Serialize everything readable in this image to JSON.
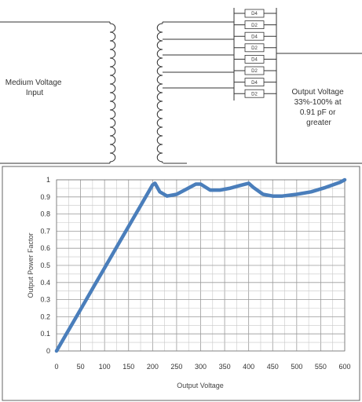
{
  "circuit": {
    "input_label": [
      "Medium Voltage",
      "Input"
    ],
    "output_label": [
      "Output Voltage",
      "33%-100% at",
      "0.91 pF or",
      "greater"
    ],
    "diode_labels": [
      "D4",
      "D2",
      "D4",
      "D2",
      "D4",
      "D2",
      "D4",
      "D2"
    ]
  },
  "chart_data": {
    "type": "line",
    "title": "",
    "xlabel": "Output Voltage",
    "ylabel": "Output Power Factor",
    "xlim": [
      0,
      600
    ],
    "ylim": [
      0,
      1
    ],
    "xticks": [
      "0",
      "50",
      "100",
      "150",
      "200",
      "250",
      "300",
      "350",
      "400",
      "450",
      "500",
      "550",
      "600"
    ],
    "yticks": [
      "0",
      "0.1",
      "0.2",
      "0.3",
      "0.4",
      "0.5",
      "0.6",
      "0.7",
      "0.8",
      "0.9",
      "1"
    ],
    "grid": true,
    "series": [
      {
        "x": [
          0,
          20,
          40,
          60,
          80,
          100,
          120,
          140,
          160,
          180,
          200,
          205,
          215,
          230,
          250,
          270,
          290,
          300,
          320,
          340,
          360,
          380,
          400,
          410,
          430,
          450,
          470,
          500,
          530,
          560,
          590,
          600
        ],
        "y": [
          0,
          0.097,
          0.194,
          0.291,
          0.388,
          0.485,
          0.582,
          0.679,
          0.776,
          0.873,
          0.97,
          0.98,
          0.93,
          0.905,
          0.915,
          0.945,
          0.975,
          0.975,
          0.94,
          0.94,
          0.95,
          0.965,
          0.98,
          0.955,
          0.915,
          0.905,
          0.905,
          0.915,
          0.93,
          0.955,
          0.985,
          1.0
        ],
        "color": "#4a7ebb"
      }
    ]
  }
}
